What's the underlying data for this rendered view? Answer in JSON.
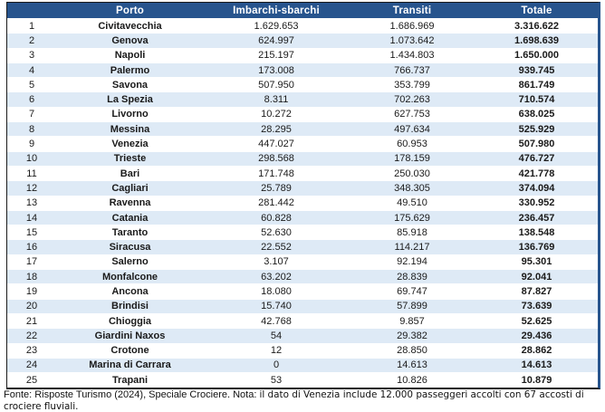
{
  "colors": {
    "header_bg": "#27548D",
    "alt_row_bg": "#DEEAF6",
    "header_text": "#FFFFFF"
  },
  "chart_data": {
    "type": "table",
    "columns": [
      "",
      "Porto",
      "Imbarchi-sbarchi",
      "Transiti",
      "Totale"
    ],
    "rows": [
      [
        "1",
        "Civitavecchia",
        "1.629.653",
        "1.686.969",
        "3.316.622"
      ],
      [
        "2",
        "Genova",
        "624.997",
        "1.073.642",
        "1.698.639"
      ],
      [
        "3",
        "Napoli",
        "215.197",
        "1.434.803",
        "1.650.000"
      ],
      [
        "4",
        "Palermo",
        "173.008",
        "766.737",
        "939.745"
      ],
      [
        "5",
        "Savona",
        "507.950",
        "353.799",
        "861.749"
      ],
      [
        "6",
        "La Spezia",
        "8.311",
        "702.263",
        "710.574"
      ],
      [
        "7",
        "Livorno",
        "10.272",
        "627.753",
        "638.025"
      ],
      [
        "8",
        "Messina",
        "28.295",
        "497.634",
        "525.929"
      ],
      [
        "9",
        "Venezia",
        "447.027",
        "60.953",
        "507.980"
      ],
      [
        "10",
        "Trieste",
        "298.568",
        "178.159",
        "476.727"
      ],
      [
        "11",
        "Bari",
        "171.748",
        "250.030",
        "421.778"
      ],
      [
        "12",
        "Cagliari",
        "25.789",
        "348.305",
        "374.094"
      ],
      [
        "13",
        "Ravenna",
        "281.442",
        "49.510",
        "330.952"
      ],
      [
        "14",
        "Catania",
        "60.828",
        "175.629",
        "236.457"
      ],
      [
        "15",
        "Taranto",
        "52.630",
        "85.918",
        "138.548"
      ],
      [
        "16",
        "Siracusa",
        "22.552",
        "114.217",
        "136.769"
      ],
      [
        "17",
        "Salerno",
        "3.107",
        "92.194",
        "95.301"
      ],
      [
        "18",
        "Monfalcone",
        "63.202",
        "28.839",
        "92.041"
      ],
      [
        "19",
        "Ancona",
        "18.080",
        "69.747",
        "87.827"
      ],
      [
        "20",
        "Brindisi",
        "15.740",
        "57.899",
        "73.639"
      ],
      [
        "21",
        "Chioggia",
        "42.768",
        "9.857",
        "52.625"
      ],
      [
        "22",
        "Giardini Naxos",
        "54",
        "29.382",
        "29.436"
      ],
      [
        "23",
        "Crotone",
        "12",
        "28.850",
        "28.862"
      ],
      [
        "24",
        "Marina di Carrara",
        "0",
        "14.613",
        "14.613"
      ],
      [
        "25",
        "Trapani",
        "53",
        "10.826",
        "10.879"
      ]
    ]
  },
  "footnote": {
    "fonte": "Fonte: Risposte Turismo (2024), Speciale Crociere. Nota: ",
    "nota": "il dato di Venezia include 12.000 passeggeri accolti con 67 accosti di crociere fluviali."
  }
}
